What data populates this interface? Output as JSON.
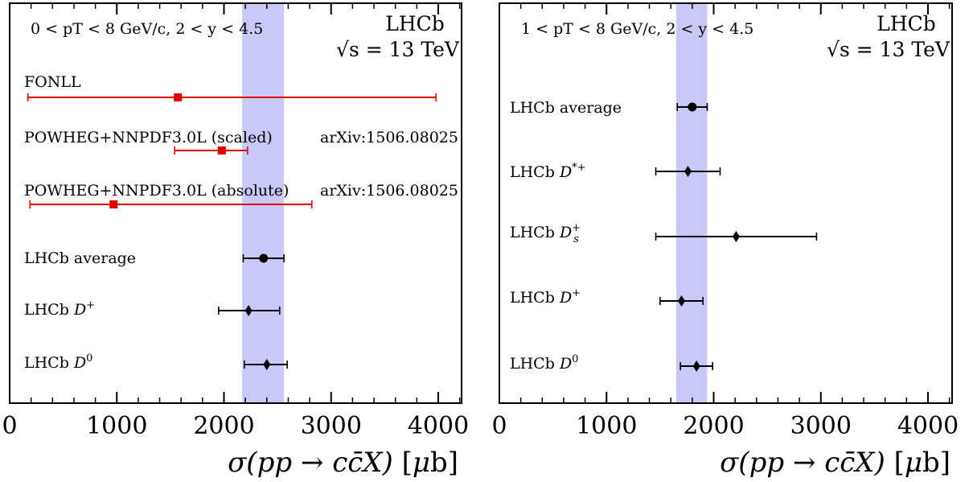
{
  "chart_data": [
    {
      "type": "scatter",
      "panel": "left",
      "experiment": "LHCb",
      "energy": "√s = 13 TeV",
      "kinematic_range": "0 < pT < 8 GeV/c,  2 < y < 4.5",
      "xlabel": "σ(pp → cc̄X) [μb]",
      "xlim": [
        0,
        4200
      ],
      "xticks": [
        "0",
        "1000",
        "2000",
        "3000",
        "4000"
      ],
      "xtick_values": [
        0,
        1000,
        2000,
        3000,
        4000
      ],
      "band": {
        "low": 2170,
        "high": 2560,
        "color": "#c9c9f7"
      },
      "points": [
        {
          "label": "FONLL",
          "value": 1570,
          "err_low": 1400,
          "err_high": 2410,
          "color": "#e00000",
          "marker": "square",
          "ref": ""
        },
        {
          "label": "POWHEG+NNPDF3.0L (scaled)",
          "value": 1980,
          "err_low": 440,
          "err_high": 240,
          "color": "#e00000",
          "marker": "square",
          "ref": "arXiv:1506.08025"
        },
        {
          "label": "POWHEG+NNPDF3.0L (absolute)",
          "value": 970,
          "err_low": 780,
          "err_high": 1850,
          "color": "#e00000",
          "marker": "square",
          "ref": "arXiv:1506.08025"
        },
        {
          "label": "LHCb average",
          "value": 2370,
          "err_low": 190,
          "err_high": 190,
          "color": "#000000",
          "marker": "circle",
          "ref": ""
        },
        {
          "label": "LHCb D+",
          "value": 2230,
          "err_low": 280,
          "err_high": 290,
          "color": "#000000",
          "marker": "diamond",
          "ref": ""
        },
        {
          "label": "LHCb D0",
          "value": 2400,
          "err_low": 210,
          "err_high": 190,
          "color": "#000000",
          "marker": "diamond",
          "ref": ""
        }
      ]
    },
    {
      "type": "scatter",
      "panel": "right",
      "experiment": "LHCb",
      "energy": "√s = 13 TeV",
      "kinematic_range": "1 < pT < 8 GeV/c,  2 < y < 4.5",
      "xlabel": "σ(pp → cc̄X) [μb]",
      "xlim": [
        0,
        4200
      ],
      "xticks": [
        "0",
        "1000",
        "2000",
        "3000",
        "4000"
      ],
      "xtick_values": [
        0,
        1000,
        2000,
        3000,
        4000
      ],
      "band": {
        "low": 1650,
        "high": 1940,
        "color": "#c9c9f7"
      },
      "points": [
        {
          "label": "LHCb average",
          "value": 1800,
          "err_low": 140,
          "err_high": 140,
          "color": "#000000",
          "marker": "circle",
          "ref": ""
        },
        {
          "label": "LHCb D*+",
          "value": 1760,
          "err_low": 300,
          "err_high": 300,
          "color": "#000000",
          "marker": "diamond",
          "ref": ""
        },
        {
          "label": "LHCb Ds+",
          "value": 2210,
          "err_low": 750,
          "err_high": 750,
          "color": "#000000",
          "marker": "diamond",
          "ref": ""
        },
        {
          "label": "LHCb D+",
          "value": 1700,
          "err_low": 200,
          "err_high": 200,
          "color": "#000000",
          "marker": "diamond",
          "ref": ""
        },
        {
          "label": "LHCb D0",
          "value": 1840,
          "err_low": 150,
          "err_high": 150,
          "color": "#000000",
          "marker": "diamond",
          "ref": ""
        }
      ]
    }
  ]
}
